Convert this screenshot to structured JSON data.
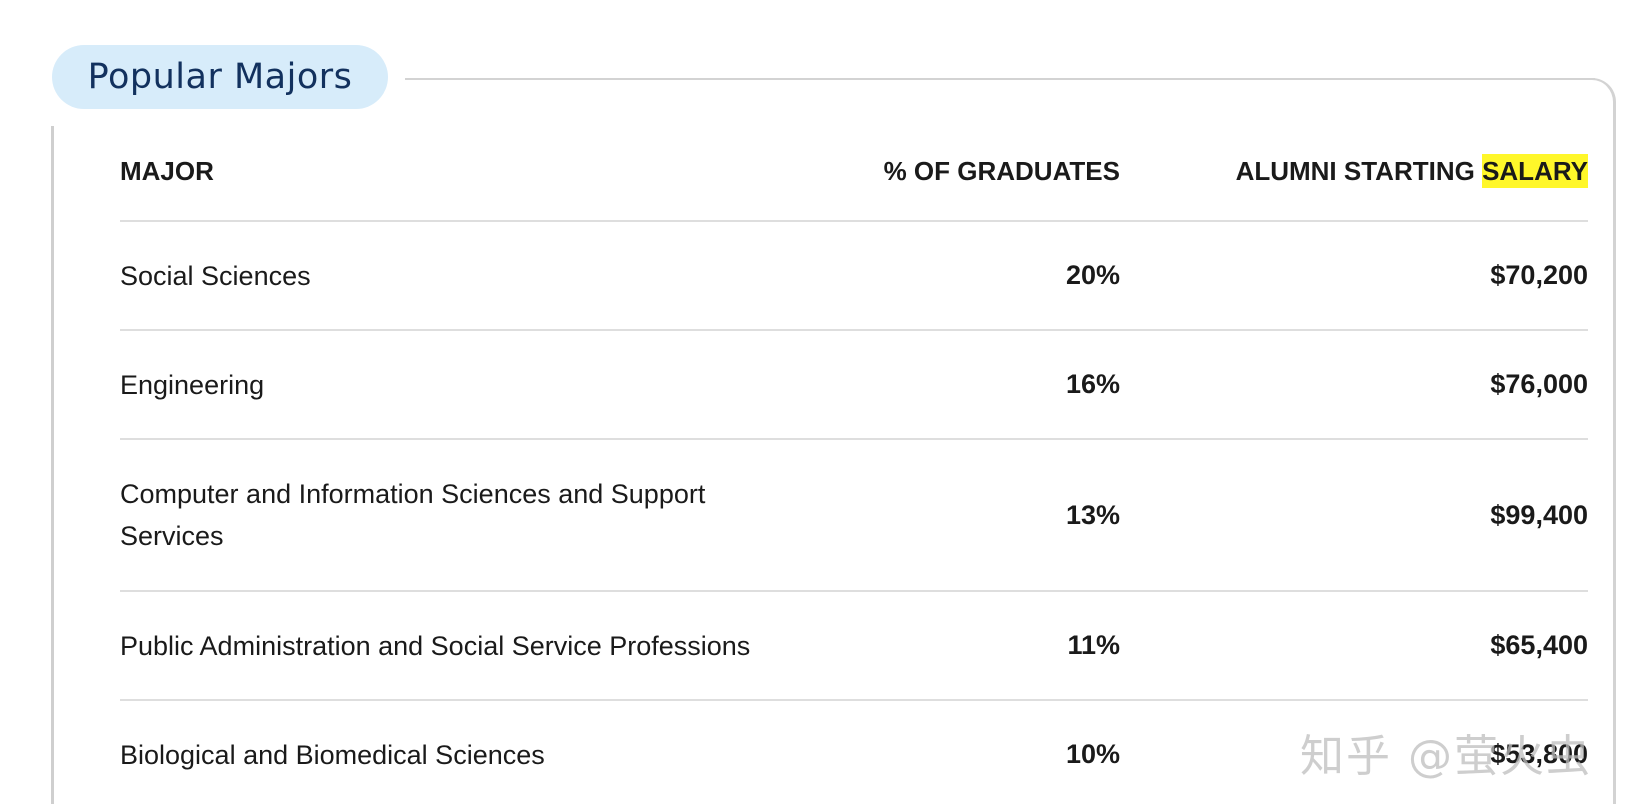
{
  "section": {
    "title": "Popular Majors"
  },
  "table": {
    "headers": {
      "major": "MAJOR",
      "pct": "% OF GRADUATES",
      "salary_prefix": "ALUMNI STARTING ",
      "salary_highlight": "SALARY"
    },
    "rows": [
      {
        "major": "Social Sciences",
        "pct": "20%",
        "salary": "$70,200"
      },
      {
        "major": "Engineering",
        "pct": "16%",
        "salary": "$76,000"
      },
      {
        "major": "Computer and Information Sciences and Support Services",
        "pct": "13%",
        "salary": "$99,400"
      },
      {
        "major": "Public Administration and Social Service Professions",
        "pct": "11%",
        "salary": "$65,400"
      },
      {
        "major": "Biological and Biomedical Sciences",
        "pct": "10%",
        "salary": "$53,800"
      }
    ]
  },
  "colors": {
    "pill_bg": "#d7ecfa",
    "pill_text": "#12315e",
    "highlight": "#fff72a",
    "divider": "#dedede"
  },
  "watermark": "知乎 @萤火虫"
}
